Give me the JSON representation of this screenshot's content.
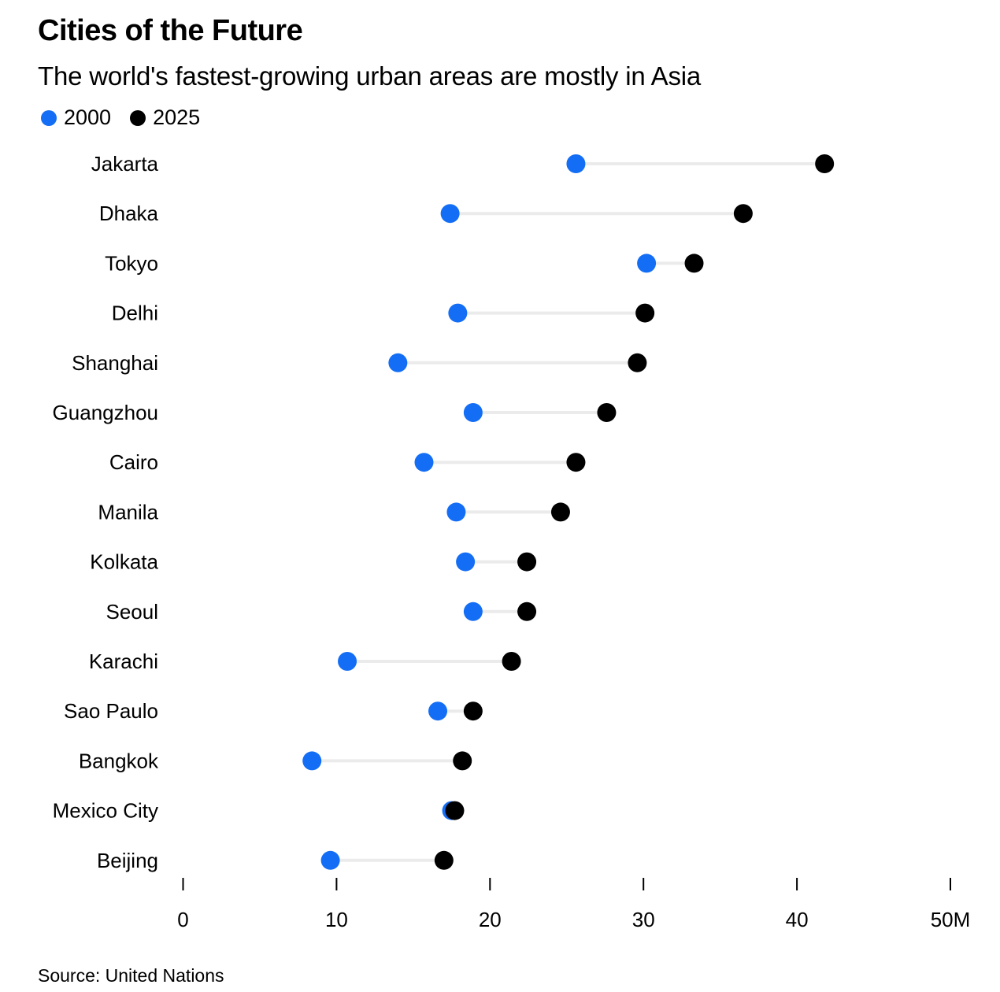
{
  "chart_data": {
    "type": "dumbbell",
    "title": "Cities of the Future",
    "subtitle": "The world's fastest-growing urban areas are mostly in Asia",
    "source": "Source: United Nations",
    "xlabel": "",
    "ylabel": "",
    "xlim": [
      0,
      50
    ],
    "x_ticks": [
      0,
      10,
      20,
      30,
      40,
      50
    ],
    "x_tick_labels": [
      "0",
      "10",
      "20",
      "30",
      "40",
      "50M"
    ],
    "grid": false,
    "legend_position": "top-left",
    "series": [
      {
        "name": "2000",
        "color": "#146EF5"
      },
      {
        "name": "2025",
        "color": "#000000"
      }
    ],
    "connector_color": "#EBEBEB",
    "categories": [
      "Jakarta",
      "Dhaka",
      "Tokyo",
      "Delhi",
      "Shanghai",
      "Guangzhou",
      "Cairo",
      "Manila",
      "Kolkata",
      "Seoul",
      "Karachi",
      "Sao Paulo",
      "Bangkok",
      "Mexico City",
      "Beijing"
    ],
    "values_2000": [
      25.6,
      17.4,
      30.2,
      17.9,
      14.0,
      18.9,
      15.7,
      17.8,
      18.4,
      18.9,
      10.7,
      16.6,
      8.4,
      17.5,
      9.6
    ],
    "values_2025": [
      41.8,
      36.5,
      33.3,
      30.1,
      29.6,
      27.6,
      25.6,
      24.6,
      22.4,
      22.4,
      21.4,
      18.9,
      18.2,
      17.7,
      17.0
    ],
    "units": "millions of people"
  }
}
